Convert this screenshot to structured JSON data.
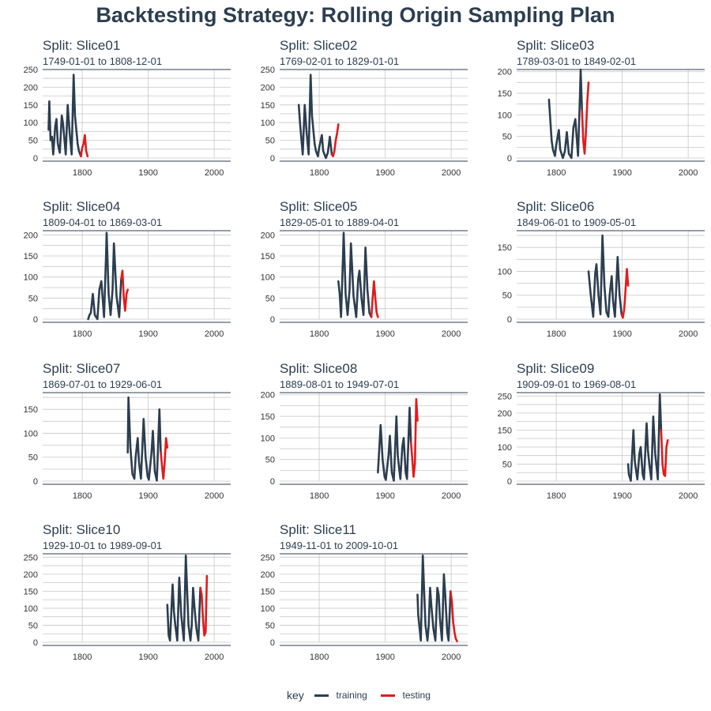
{
  "title": "Backtesting Strategy: Rolling Origin Sampling Plan",
  "legend": {
    "title": "key",
    "items": [
      {
        "label": "training",
        "color": "#2c3e50"
      },
      {
        "label": "testing",
        "color": "#e31a1c"
      }
    ]
  },
  "chart_data": {
    "type": "line",
    "xlim": [
      1740,
      2025
    ],
    "x_ticks": [
      1800,
      1900,
      2000
    ],
    "panels": [
      {
        "split": "Split: Slice01",
        "range": "1749-01-01 to 1808-12-01",
        "ylim": [
          0,
          250
        ],
        "y_ticks": [
          0,
          50,
          100,
          150,
          200,
          250
        ],
        "training": {
          "x": [
            1749,
            1750,
            1752,
            1754,
            1756,
            1759,
            1761,
            1763,
            1766,
            1769,
            1771,
            1775,
            1778,
            1781,
            1784,
            1787,
            1789,
            1793,
            1795,
            1798
          ],
          "y": [
            80,
            160,
            50,
            60,
            10,
            90,
            110,
            40,
            15,
            120,
            95,
            10,
            150,
            70,
            10,
            235,
            120,
            40,
            20,
            5
          ]
        },
        "testing": {
          "x": [
            1798,
            1800,
            1802,
            1804,
            1806,
            1808
          ],
          "y": [
            5,
            30,
            40,
            65,
            20,
            5
          ]
        }
      },
      {
        "split": "Split: Slice02",
        "range": "1769-02-01 to 1829-01-01",
        "ylim": [
          0,
          250
        ],
        "y_ticks": [
          0,
          50,
          100,
          150,
          200,
          250
        ],
        "training": {
          "x": [
            1769,
            1771,
            1775,
            1778,
            1781,
            1784,
            1787,
            1789,
            1793,
            1795,
            1798,
            1800,
            1804,
            1806,
            1810,
            1813,
            1816,
            1819
          ],
          "y": [
            150,
            95,
            10,
            150,
            70,
            10,
            235,
            120,
            40,
            20,
            5,
            30,
            65,
            20,
            0,
            15,
            60,
            10
          ]
        },
        "testing": {
          "x": [
            1819,
            1821,
            1823,
            1825,
            1827,
            1829
          ],
          "y": [
            10,
            5,
            20,
            50,
            70,
            95
          ]
        }
      },
      {
        "split": "Split: Slice03",
        "range": "1789-03-01 to 1849-02-01",
        "ylim": [
          0,
          205
        ],
        "y_ticks": [
          0,
          50,
          100,
          150,
          200
        ],
        "training": {
          "x": [
            1789,
            1793,
            1795,
            1798,
            1800,
            1804,
            1806,
            1810,
            1813,
            1816,
            1819,
            1823,
            1826,
            1829,
            1833,
            1836,
            1837,
            1839
          ],
          "y": [
            135,
            40,
            20,
            5,
            30,
            65,
            20,
            0,
            15,
            60,
            10,
            0,
            70,
            90,
            5,
            150,
            205,
            110
          ]
        },
        "testing": {
          "x": [
            1839,
            1841,
            1843,
            1845,
            1847,
            1849
          ],
          "y": [
            110,
            40,
            10,
            60,
            130,
            175
          ]
        }
      },
      {
        "split": "Split: Slice04",
        "range": "1809-04-01 to 1869-03-01",
        "ylim": [
          0,
          210
        ],
        "y_ticks": [
          0,
          50,
          100,
          150,
          200
        ],
        "training": {
          "x": [
            1809,
            1811,
            1813,
            1816,
            1819,
            1823,
            1826,
            1829,
            1833,
            1836,
            1837,
            1840,
            1843,
            1846,
            1848,
            1852,
            1856,
            1859
          ],
          "y": [
            0,
            10,
            15,
            60,
            10,
            0,
            70,
            90,
            5,
            150,
            205,
            60,
            10,
            70,
            180,
            55,
            5,
            95
          ]
        },
        "testing": {
          "x": [
            1859,
            1861,
            1863,
            1865,
            1867,
            1869
          ],
          "y": [
            95,
            115,
            50,
            20,
            60,
            70
          ]
        }
      },
      {
        "split": "Split: Slice05",
        "range": "1829-05-01 to 1889-04-01",
        "ylim": [
          0,
          210
        ],
        "y_ticks": [
          0,
          50,
          100,
          150,
          200
        ],
        "training": {
          "x": [
            1829,
            1831,
            1833,
            1836,
            1837,
            1840,
            1843,
            1846,
            1848,
            1852,
            1856,
            1859,
            1861,
            1864,
            1867,
            1870,
            1873,
            1876,
            1879
          ],
          "y": [
            90,
            60,
            5,
            150,
            205,
            60,
            10,
            70,
            180,
            55,
            5,
            95,
            115,
            50,
            10,
            170,
            70,
            15,
            5
          ]
        },
        "testing": {
          "x": [
            1879,
            1881,
            1883,
            1885,
            1887,
            1889
          ],
          "y": [
            5,
            50,
            90,
            50,
            15,
            5
          ]
        }
      },
      {
        "split": "Split: Slice06",
        "range": "1849-06-01 to 1909-05-01",
        "ylim": [
          0,
          185
        ],
        "y_ticks": [
          0,
          50,
          100,
          150
        ],
        "training": {
          "x": [
            1849,
            1852,
            1856,
            1859,
            1861,
            1864,
            1867,
            1870,
            1873,
            1876,
            1879,
            1881,
            1884,
            1886,
            1889,
            1893,
            1896,
            1899
          ],
          "y": [
            100,
            55,
            5,
            95,
            115,
            50,
            10,
            175,
            70,
            15,
            5,
            50,
            90,
            40,
            5,
            130,
            50,
            10
          ]
        },
        "testing": {
          "x": [
            1899,
            1901,
            1903,
            1905,
            1907,
            1909
          ],
          "y": [
            10,
            3,
            20,
            60,
            105,
            70
          ]
        }
      },
      {
        "split": "Split: Slice07",
        "range": "1869-07-01 to 1929-06-01",
        "ylim": [
          0,
          185
        ],
        "y_ticks": [
          0,
          50,
          100,
          150
        ],
        "training": {
          "x": [
            1869,
            1870,
            1873,
            1876,
            1879,
            1881,
            1884,
            1886,
            1889,
            1893,
            1896,
            1899,
            1901,
            1905,
            1907,
            1910,
            1913,
            1917,
            1919
          ],
          "y": [
            60,
            175,
            70,
            15,
            5,
            50,
            90,
            40,
            5,
            130,
            50,
            10,
            3,
            60,
            105,
            20,
            1,
            150,
            60
          ]
        },
        "testing": {
          "x": [
            1919,
            1921,
            1923,
            1925,
            1927,
            1929
          ],
          "y": [
            60,
            30,
            5,
            40,
            90,
            70
          ]
        }
      },
      {
        "split": "Split: Slice08",
        "range": "1889-08-01 to 1949-07-01",
        "ylim": [
          0,
          205
        ],
        "y_ticks": [
          0,
          50,
          100,
          150,
          200
        ],
        "training": {
          "x": [
            1889,
            1893,
            1896,
            1899,
            1901,
            1905,
            1907,
            1910,
            1913,
            1917,
            1919,
            1921,
            1923,
            1926,
            1928,
            1931,
            1933,
            1937,
            1939
          ],
          "y": [
            20,
            130,
            50,
            10,
            3,
            60,
            105,
            20,
            1,
            150,
            60,
            30,
            5,
            80,
            100,
            20,
            5,
            170,
            90
          ]
        },
        "testing": {
          "x": [
            1939,
            1941,
            1943,
            1945,
            1947,
            1949
          ],
          "y": [
            90,
            50,
            10,
            40,
            190,
            140
          ]
        }
      },
      {
        "split": "Split: Slice09",
        "range": "1909-09-01 to 1969-08-01",
        "ylim": [
          0,
          260
        ],
        "y_ticks": [
          0,
          50,
          100,
          150,
          200,
          250
        ],
        "training": {
          "x": [
            1909,
            1910,
            1913,
            1917,
            1919,
            1921,
            1923,
            1926,
            1928,
            1931,
            1933,
            1937,
            1939,
            1941,
            1944,
            1947,
            1950,
            1954,
            1957,
            1959
          ],
          "y": [
            50,
            20,
            1,
            150,
            60,
            30,
            5,
            80,
            100,
            20,
            5,
            170,
            90,
            50,
            5,
            190,
            80,
            5,
            255,
            150
          ]
        },
        "testing": {
          "x": [
            1959,
            1961,
            1963,
            1965,
            1967,
            1969
          ],
          "y": [
            150,
            50,
            20,
            15,
            100,
            120
          ]
        }
      },
      {
        "split": "Split: Slice10",
        "range": "1929-10-01 to 1989-09-01",
        "ylim": [
          0,
          260
        ],
        "y_ticks": [
          0,
          50,
          100,
          150,
          200,
          250
        ],
        "training": {
          "x": [
            1929,
            1931,
            1933,
            1937,
            1939,
            1941,
            1944,
            1947,
            1950,
            1954,
            1957,
            1959,
            1961,
            1964,
            1966,
            1968,
            1970,
            1973,
            1976,
            1979
          ],
          "y": [
            110,
            20,
            5,
            170,
            90,
            50,
            5,
            190,
            80,
            5,
            255,
            150,
            50,
            5,
            50,
            160,
            105,
            40,
            5,
            160
          ]
        },
        "testing": {
          "x": [
            1979,
            1981,
            1983,
            1985,
            1987,
            1989
          ],
          "y": [
            160,
            140,
            70,
            20,
            30,
            195
          ]
        }
      },
      {
        "split": "Split: Slice11",
        "range": "1949-11-01 to 2009-10-01",
        "ylim": [
          0,
          260
        ],
        "y_ticks": [
          0,
          50,
          100,
          150,
          200,
          250
        ],
        "training": {
          "x": [
            1949,
            1950,
            1954,
            1957,
            1959,
            1961,
            1964,
            1966,
            1968,
            1970,
            1973,
            1976,
            1979,
            1981,
            1983,
            1986,
            1989,
            1991,
            1994,
            1996,
            1999
          ],
          "y": [
            140,
            80,
            5,
            255,
            150,
            50,
            5,
            50,
            160,
            105,
            40,
            5,
            160,
            140,
            70,
            5,
            200,
            140,
            30,
            5,
            150
          ]
        },
        "testing": {
          "x": [
            1999,
            2001,
            2003,
            2005,
            2007,
            2009
          ],
          "y": [
            150,
            120,
            60,
            30,
            10,
            3
          ]
        }
      }
    ]
  }
}
